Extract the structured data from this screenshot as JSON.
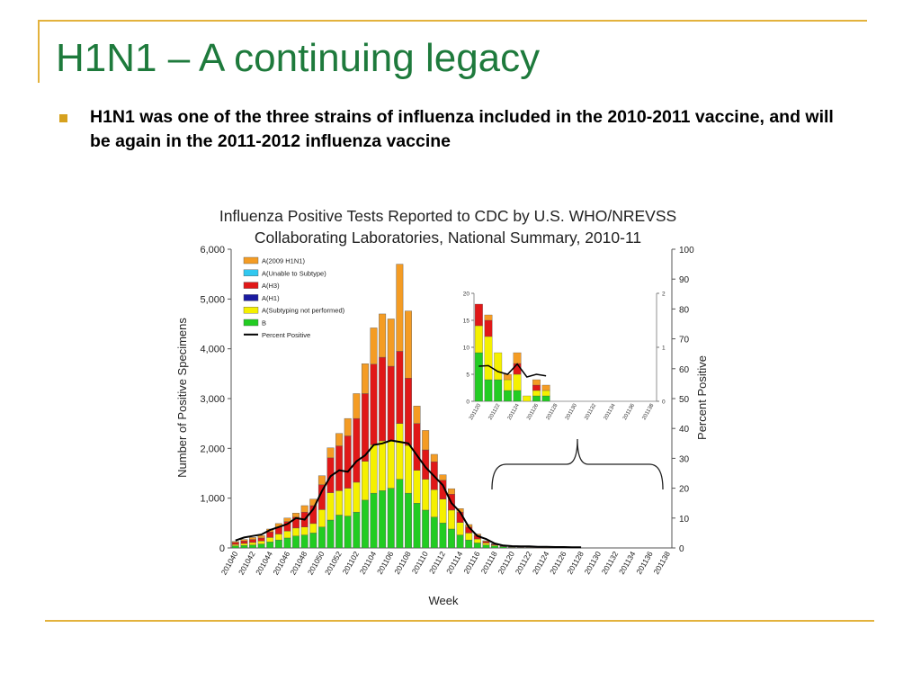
{
  "slide": {
    "title": "H1N1 – A continuing legacy",
    "bullet": "H1N1 was one of the three strains of influenza included in the 2010-2011 vaccine, and will be again in the 2011-2012 influenza vaccine",
    "accent_color": "#e3b23c",
    "title_color": "#1e7a3c"
  },
  "chart_data": [
    {
      "type": "bar",
      "stacked": true,
      "title_line1": "Influenza Positive Tests Reported to CDC by U.S. WHO/NREVSS",
      "title_line2": "Collaborating Laboratories, National Summary, 2010-11",
      "xlabel": "Week",
      "ylabel": "Number of Positive Specimens",
      "y2label": "Percent Positive",
      "ylim": [
        0,
        6000
      ],
      "y2lim": [
        0,
        100
      ],
      "yticks": [
        "0",
        "1,000",
        "2,000",
        "3,000",
        "4,000",
        "5,000",
        "6,000"
      ],
      "y2ticks": [
        "0",
        "10",
        "20",
        "30",
        "40",
        "50",
        "60",
        "70",
        "80",
        "90",
        "100"
      ],
      "categories": [
        "201040",
        "201041",
        "201042",
        "201043",
        "201044",
        "201045",
        "201046",
        "201047",
        "201048",
        "201049",
        "201050",
        "201051",
        "201052",
        "201101",
        "201102",
        "201103",
        "201104",
        "201105",
        "201106",
        "201107",
        "201108",
        "201109",
        "201110",
        "201111",
        "201112",
        "201113",
        "201114",
        "201115",
        "201116",
        "201117",
        "201118",
        "201119",
        "201120",
        "201121",
        "201122",
        "201123",
        "201124",
        "201125",
        "201126",
        "201127",
        "201128",
        "201129",
        "201130",
        "201131",
        "201132",
        "201133",
        "201134",
        "201135",
        "201136",
        "201137",
        "201138"
      ],
      "xtick_labels": [
        "201040",
        "201042",
        "201044",
        "201046",
        "201048",
        "201050",
        "201052",
        "201102",
        "201104",
        "201106",
        "201108",
        "201110",
        "201112",
        "201114",
        "201116",
        "201118",
        "201120",
        "201122",
        "201124",
        "201126",
        "201128",
        "201130",
        "201132",
        "201134",
        "201136",
        "201138"
      ],
      "legend_position": "top-left",
      "series": [
        {
          "name": "B",
          "color": "#22cc22",
          "values": [
            40,
            50,
            60,
            80,
            120,
            160,
            200,
            240,
            260,
            300,
            420,
            560,
            660,
            640,
            720,
            960,
            1100,
            1150,
            1200,
            1380,
            1100,
            900,
            760,
            620,
            500,
            380,
            260,
            160,
            100,
            60,
            40,
            24,
            10,
            4,
            4,
            2,
            1,
            0,
            0,
            0,
            0,
            0,
            0,
            0,
            0,
            0,
            0,
            0,
            0,
            0,
            0
          ]
        },
        {
          "name": "A(Subtyping not performed)",
          "color": "#f5f000",
          "values": [
            30,
            40,
            50,
            60,
            90,
            120,
            140,
            160,
            160,
            190,
            350,
            550,
            490,
            560,
            600,
            780,
            970,
            1000,
            950,
            1120,
            960,
            660,
            620,
            550,
            480,
            380,
            250,
            140,
            80,
            40,
            20,
            10,
            5,
            5,
            5,
            2,
            1,
            0,
            0,
            0,
            0,
            0,
            0,
            0,
            0,
            0,
            0,
            0,
            0,
            0,
            0
          ]
        },
        {
          "name": "A(H1)",
          "color": "#1a1aa0",
          "values": [
            0,
            0,
            0,
            0,
            0,
            0,
            0,
            0,
            0,
            0,
            0,
            0,
            0,
            0,
            0,
            0,
            0,
            0,
            0,
            0,
            0,
            0,
            0,
            0,
            0,
            0,
            0,
            0,
            0,
            0,
            0,
            0,
            0,
            0,
            0,
            0,
            0,
            0,
            0,
            0,
            0,
            0,
            0,
            0,
            0,
            0,
            0,
            0,
            0,
            0,
            0
          ]
        },
        {
          "name": "A(H3)",
          "color": "#e01818",
          "values": [
            40,
            50,
            60,
            60,
            110,
            140,
            190,
            220,
            300,
            360,
            500,
            700,
            900,
            1050,
            1280,
            1360,
            1620,
            1680,
            1500,
            1450,
            1350,
            940,
            590,
            560,
            380,
            320,
            210,
            120,
            70,
            30,
            15,
            8,
            4,
            3,
            3,
            1,
            1,
            0,
            0,
            0,
            0,
            0,
            0,
            0,
            0,
            0,
            0,
            0,
            0,
            0,
            0
          ]
        },
        {
          "name": "A(Unable to Subtype)",
          "color": "#30c8f0",
          "values": [
            0,
            0,
            0,
            0,
            0,
            0,
            0,
            0,
            0,
            0,
            0,
            0,
            0,
            0,
            0,
            0,
            0,
            0,
            0,
            0,
            0,
            0,
            0,
            0,
            0,
            0,
            0,
            0,
            0,
            0,
            0,
            0,
            0,
            0,
            0,
            0,
            0,
            0,
            0,
            0,
            0,
            0,
            0,
            0,
            0,
            0,
            0,
            0,
            0,
            0,
            0
          ]
        },
        {
          "name": "A(2009 H1N1)",
          "color": "#f49c24",
          "values": [
            20,
            30,
            40,
            50,
            60,
            70,
            70,
            80,
            130,
            130,
            180,
            200,
            250,
            350,
            500,
            600,
            730,
            870,
            950,
            1750,
            1350,
            350,
            390,
            150,
            110,
            110,
            70,
            50,
            30,
            15,
            10,
            5,
            3,
            3,
            3,
            1,
            1,
            0,
            0,
            0,
            0,
            0,
            0,
            0,
            0,
            0,
            0,
            0,
            0,
            0,
            0
          ]
        }
      ],
      "percent_positive": {
        "name": "Percent Positive",
        "color": "#000000",
        "values": [
          2.5,
          3.5,
          4,
          4.5,
          6,
          7,
          8,
          10,
          9.5,
          13,
          19,
          24,
          26,
          25.5,
          29,
          31,
          34.5,
          35,
          36,
          35.5,
          35,
          31,
          27,
          24,
          21,
          15,
          12,
          7,
          4,
          3,
          1.5,
          0.8,
          0.6,
          0.5,
          0.5,
          0.4,
          0.4,
          0.3,
          0.3,
          0.2,
          0.2,
          null,
          null,
          null,
          null,
          null,
          null,
          null,
          null,
          null,
          null
        ]
      }
    },
    {
      "type": "bar",
      "stacked": true,
      "role": "inset",
      "ylim": [
        0,
        20
      ],
      "y2lim": [
        0,
        2
      ],
      "yticks": [
        "0",
        "5",
        "10",
        "15",
        "20"
      ],
      "y2ticks": [
        "0",
        "1",
        "2"
      ],
      "categories": [
        "201120",
        "201121",
        "201122",
        "201123",
        "201124",
        "201125",
        "201126",
        "201127",
        "201128",
        "201129",
        "201130",
        "201131",
        "201132",
        "201133",
        "201134",
        "201135",
        "201136",
        "201137",
        "201138"
      ],
      "xtick_labels": [
        "201120",
        "201122",
        "201124",
        "201126",
        "201128",
        "201130",
        "201132",
        "201134",
        "201136",
        "201138"
      ],
      "series": [
        {
          "name": "B",
          "color": "#22cc22",
          "values": [
            9,
            4,
            4,
            2,
            2,
            0,
            1,
            1,
            0,
            0,
            0,
            0,
            0,
            0,
            0,
            0,
            0,
            0,
            0
          ]
        },
        {
          "name": "A(Subtyping not performed)",
          "color": "#f5f000",
          "values": [
            5,
            8,
            5,
            2,
            3,
            1,
            1,
            1,
            0,
            0,
            0,
            0,
            0,
            0,
            0,
            0,
            0,
            0,
            0
          ]
        },
        {
          "name": "A(H3)",
          "color": "#e01818",
          "values": [
            4,
            3,
            0,
            0,
            2,
            0,
            1,
            0,
            0,
            0,
            0,
            0,
            0,
            0,
            0,
            0,
            0,
            0,
            0
          ]
        },
        {
          "name": "A(2009 H1N1)",
          "color": "#f49c24",
          "values": [
            0,
            1,
            0,
            1,
            2,
            0,
            1,
            1,
            0,
            0,
            0,
            0,
            0,
            0,
            0,
            0,
            0,
            0,
            0
          ]
        }
      ],
      "percent_positive": {
        "name": "Percent Positive",
        "color": "#000000",
        "values": [
          0.65,
          0.66,
          0.55,
          0.5,
          0.69,
          0.45,
          0.5,
          0.47,
          null,
          null,
          null,
          null,
          null,
          null,
          null,
          null,
          null,
          null,
          null
        ]
      }
    }
  ]
}
